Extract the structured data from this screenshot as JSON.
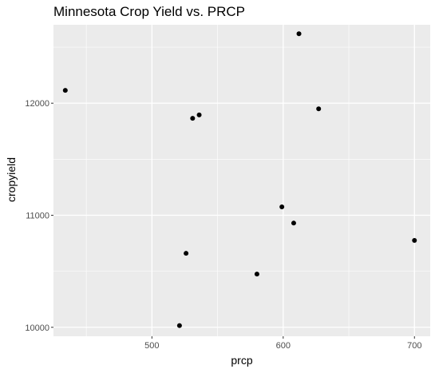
{
  "chart_data": {
    "type": "scatter",
    "title": "Minnesota Crop Yield vs. PRCP",
    "xlabel": "prcp",
    "ylabel": "cropyield",
    "xlim": [
      425,
      712
    ],
    "ylim": [
      9920,
      12700
    ],
    "x_major_ticks": [
      500,
      600,
      700
    ],
    "x_minor_ticks": [
      450,
      550,
      650
    ],
    "y_major_ticks": [
      10000,
      11000,
      12000
    ],
    "y_minor_ticks": [
      10500,
      11500,
      12500
    ],
    "x_tick_labels": [
      "500",
      "600",
      "700"
    ],
    "y_tick_labels": [
      "10000",
      "11000",
      "12000"
    ],
    "grid": true,
    "colors": {
      "panel": "#ebebeb",
      "grid": "#ffffff",
      "point": "#000000"
    },
    "points": [
      {
        "x": 434,
        "y": 12115
      },
      {
        "x": 531,
        "y": 11865
      },
      {
        "x": 536,
        "y": 11895
      },
      {
        "x": 612,
        "y": 12620
      },
      {
        "x": 627,
        "y": 11950
      },
      {
        "x": 599,
        "y": 11075
      },
      {
        "x": 608,
        "y": 10930
      },
      {
        "x": 700,
        "y": 10775
      },
      {
        "x": 526,
        "y": 10660
      },
      {
        "x": 580,
        "y": 10475
      },
      {
        "x": 521,
        "y": 10015
      }
    ]
  }
}
